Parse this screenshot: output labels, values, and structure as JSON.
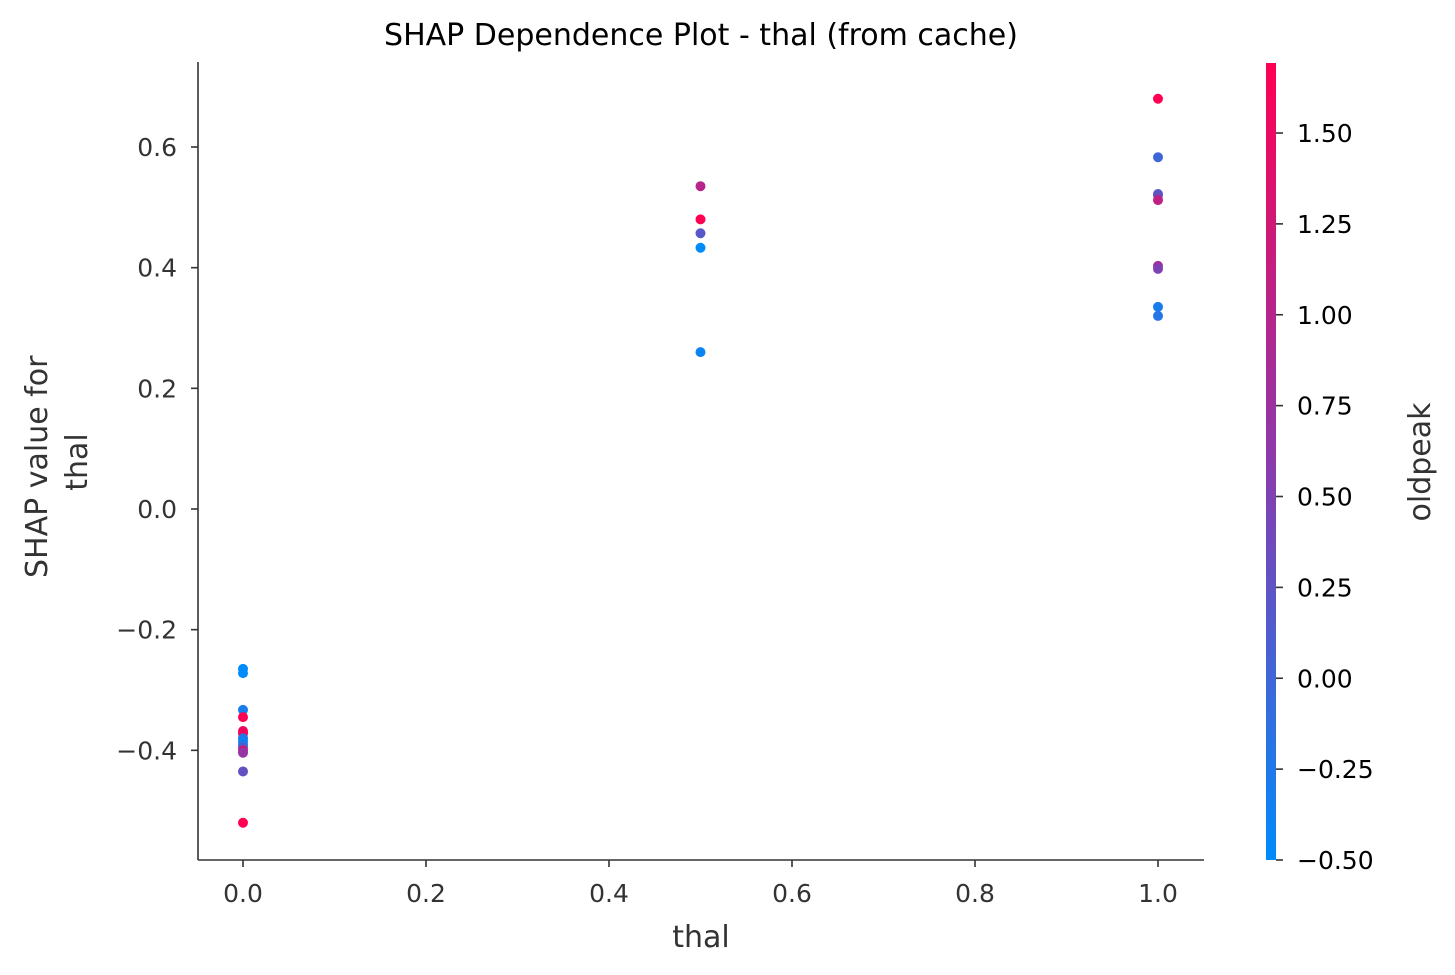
{
  "chart_data": {
    "type": "scatter",
    "title": "SHAP Dependence Plot - thal (from cache)",
    "xlabel": "thal",
    "ylabel": [
      "SHAP value for",
      "thal"
    ],
    "xlim": [
      -0.05,
      1.05
    ],
    "ylim": [
      -0.58,
      0.74
    ],
    "xticks": [
      0.0,
      0.2,
      0.4,
      0.6,
      0.8,
      1.0
    ],
    "xtick_labels": [
      "0.0",
      "0.2",
      "0.4",
      "0.6",
      "0.8",
      "1.0"
    ],
    "yticks": [
      -0.4,
      -0.2,
      0.0,
      0.2,
      0.4,
      0.6
    ],
    "ytick_labels": [
      "−0.4",
      "−0.2",
      "0.0",
      "0.2",
      "0.4",
      "0.6"
    ],
    "grid": false,
    "colorbar": {
      "label": "oldpeak",
      "range": [
        -0.5,
        1.7
      ],
      "ticks": [
        -0.5,
        -0.25,
        0.0,
        0.25,
        0.5,
        0.75,
        1.0,
        1.25,
        1.5
      ],
      "tick_labels": [
        "−0.50",
        "−0.25",
        "0.00",
        "0.25",
        "0.50",
        "0.75",
        "1.00",
        "1.25",
        "1.50"
      ],
      "low_color": "#008bfb",
      "mid_color": "#8b3aac",
      "high_color": "#ff0052"
    },
    "points": [
      {
        "x": 0.0,
        "y": -0.265,
        "c": -0.5
      },
      {
        "x": 0.0,
        "y": -0.272,
        "c": -0.5
      },
      {
        "x": 0.0,
        "y": -0.333,
        "c": -0.3
      },
      {
        "x": 0.0,
        "y": -0.345,
        "c": 1.7
      },
      {
        "x": 0.0,
        "y": -0.368,
        "c": 1.5
      },
      {
        "x": 0.0,
        "y": -0.372,
        "c": 1.6
      },
      {
        "x": 0.0,
        "y": -0.38,
        "c": -0.2
      },
      {
        "x": 0.0,
        "y": -0.385,
        "c": -0.4
      },
      {
        "x": 0.0,
        "y": -0.39,
        "c": -0.3
      },
      {
        "x": 0.0,
        "y": -0.395,
        "c": 0.1
      },
      {
        "x": 0.0,
        "y": -0.4,
        "c": 1.2
      },
      {
        "x": 0.0,
        "y": -0.404,
        "c": 0.7
      },
      {
        "x": 0.0,
        "y": -0.435,
        "c": 0.3
      },
      {
        "x": 0.0,
        "y": -0.52,
        "c": 1.7
      },
      {
        "x": 0.5,
        "y": 0.535,
        "c": 1.0
      },
      {
        "x": 0.5,
        "y": 0.48,
        "c": 1.7
      },
      {
        "x": 0.5,
        "y": 0.457,
        "c": 0.2
      },
      {
        "x": 0.5,
        "y": 0.433,
        "c": -0.5
      },
      {
        "x": 0.5,
        "y": 0.26,
        "c": -0.4
      },
      {
        "x": 1.0,
        "y": 0.68,
        "c": 1.7
      },
      {
        "x": 1.0,
        "y": 0.583,
        "c": 0.0
      },
      {
        "x": 1.0,
        "y": 0.522,
        "c": 0.1
      },
      {
        "x": 1.0,
        "y": 0.52,
        "c": 0.3
      },
      {
        "x": 1.0,
        "y": 0.512,
        "c": 1.1
      },
      {
        "x": 1.0,
        "y": 0.403,
        "c": 0.8
      },
      {
        "x": 1.0,
        "y": 0.398,
        "c": 0.5
      },
      {
        "x": 1.0,
        "y": 0.335,
        "c": -0.3
      },
      {
        "x": 1.0,
        "y": 0.32,
        "c": -0.2
      }
    ]
  }
}
